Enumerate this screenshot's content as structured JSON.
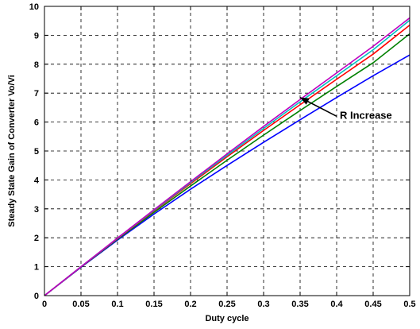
{
  "chart_data": {
    "type": "line",
    "xlabel": "Duty cycle",
    "ylabel": "Steady State Gain of Converter Vo/Vi",
    "xlim": [
      0,
      0.5
    ],
    "ylim": [
      0,
      10
    ],
    "xticks": [
      0,
      0.05,
      0.1,
      0.15,
      0.2,
      0.25,
      0.3,
      0.35,
      0.4,
      0.45,
      0.5
    ],
    "xtick_labels": [
      "0",
      "0.05",
      "0.1",
      "0.15",
      "0.2",
      "0.25",
      "0.3",
      "0.35",
      "0.4",
      "0.45",
      "0.5"
    ],
    "yticks": [
      0,
      1,
      2,
      3,
      4,
      5,
      6,
      7,
      8,
      9,
      10
    ],
    "ytick_labels": [
      "0",
      "1",
      "2",
      "3",
      "4",
      "5",
      "6",
      "7",
      "8",
      "9",
      "10"
    ],
    "grid": true,
    "x": [
      0,
      0.05,
      0.1,
      0.15,
      0.2,
      0.25,
      0.3,
      0.35,
      0.4,
      0.45,
      0.5
    ],
    "series": [
      {
        "color": "#0000ff",
        "values": [
          0,
          0.98,
          1.92,
          2.82,
          3.68,
          4.5,
          5.3,
          6.08,
          6.85,
          7.6,
          8.32
        ]
      },
      {
        "color": "#008000",
        "values": [
          0,
          0.99,
          1.95,
          2.88,
          3.79,
          4.68,
          5.55,
          6.4,
          7.23,
          8.05,
          9.05
        ]
      },
      {
        "color": "#ff0000",
        "values": [
          0,
          0.995,
          1.97,
          2.93,
          3.87,
          4.8,
          5.71,
          6.6,
          7.48,
          8.35,
          9.35
        ]
      },
      {
        "color": "#00bfbf",
        "values": [
          0,
          1.0,
          1.98,
          2.95,
          3.91,
          4.85,
          5.78,
          6.7,
          7.6,
          8.5,
          9.52
        ]
      },
      {
        "color": "#bf00bf",
        "values": [
          0,
          1.0,
          1.99,
          2.97,
          3.94,
          4.9,
          5.85,
          6.78,
          7.7,
          8.62,
          9.6
        ]
      }
    ],
    "annotation": {
      "text": "R Increase",
      "arrow_from": [
        0.4,
        6.2
      ],
      "arrow_to": [
        0.35,
        6.85
      ]
    }
  }
}
